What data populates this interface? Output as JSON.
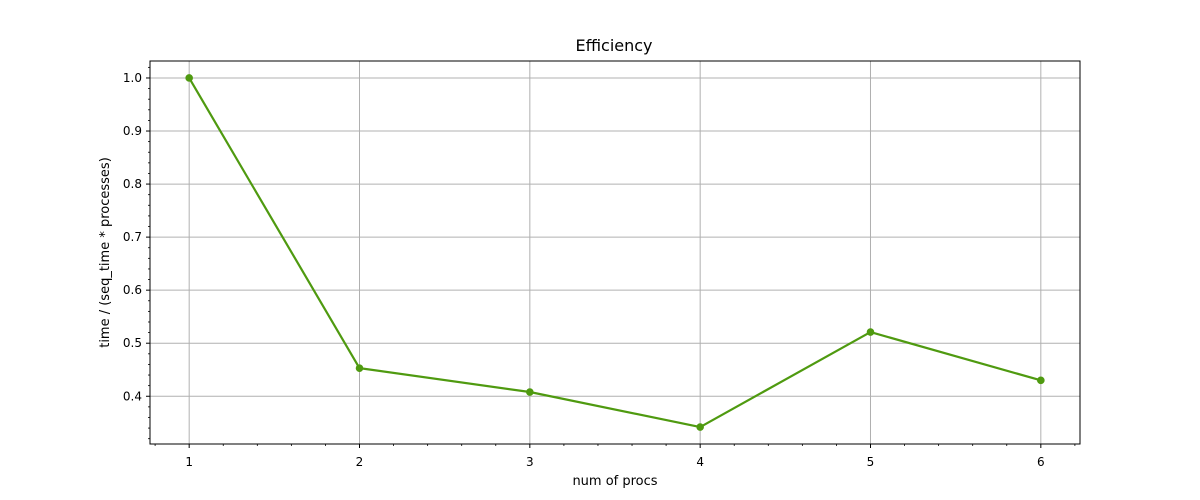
{
  "chart_data": {
    "type": "line",
    "title": "Efficiency",
    "xlabel": "num of procs",
    "ylabel": "time / (seq_time * processes)",
    "x": [
      1,
      2,
      3,
      4,
      5,
      6
    ],
    "series": [
      {
        "values": [
          1.0,
          0.453,
          0.408,
          0.342,
          0.521,
          0.43
        ],
        "color": "#4f9a10"
      }
    ],
    "xticks": [
      "1",
      "2",
      "3",
      "4",
      "5",
      "6"
    ],
    "yticks": [
      "0.4",
      "0.5",
      "0.6",
      "0.7",
      "0.8",
      "0.9",
      "1.0"
    ],
    "xlim": [
      0.77,
      6.23
    ],
    "ylim": [
      0.31,
      1.032
    ],
    "grid": true,
    "minor_ticks": true
  }
}
